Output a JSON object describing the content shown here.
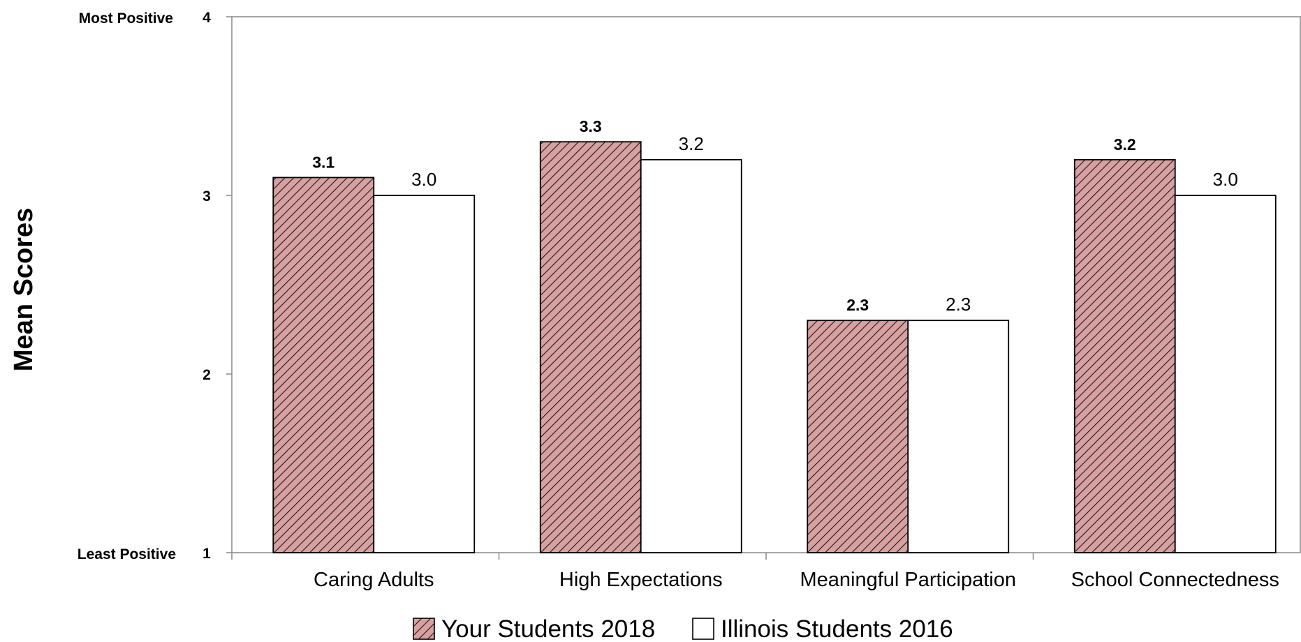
{
  "chart_data": {
    "type": "bar",
    "categories": [
      "Caring Adults",
      "High Expectations",
      "Meaningful Participation",
      "School Connectedness"
    ],
    "series": [
      {
        "name": "Your Students 2018",
        "values": [
          3.1,
          3.3,
          2.3,
          3.2
        ],
        "labels": [
          "3.1",
          "3.3",
          "2.3",
          "3.2"
        ],
        "color": "#d8a0a0",
        "pattern": "diagonal-hatch"
      },
      {
        "name": "Illinois Students 2016",
        "values": [
          3.0,
          3.2,
          2.3,
          3.0
        ],
        "labels": [
          "3.0",
          "3.2",
          "2.3",
          "3.0"
        ],
        "color": "#ffffff"
      }
    ],
    "title": "",
    "xlabel": "",
    "ylabel": "Mean Scores",
    "ylim": [
      1,
      4
    ],
    "yticks": [
      "1",
      "2",
      "3",
      "4"
    ],
    "ytick_extras": {
      "top": "Most Positive",
      "bottom": "Least Positive"
    },
    "grid": false,
    "legend": "bottom"
  }
}
